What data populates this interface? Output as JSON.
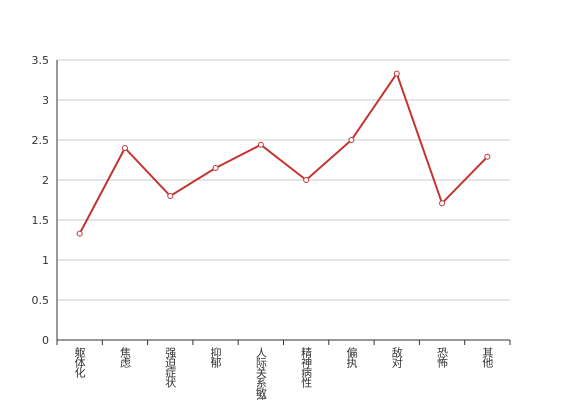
{
  "chart_data": {
    "type": "line",
    "categories": [
      "躯体化",
      "焦虑",
      "强迫症状",
      "抑郁",
      "人际关系敏感",
      "精神病性",
      "偏执",
      "敌对",
      "恐怖",
      "其他"
    ],
    "values": [
      1.33,
      2.4,
      1.8,
      2.15,
      2.44,
      2.0,
      2.5,
      3.33,
      1.71,
      2.29
    ],
    "color": "#c23531",
    "ylim": [
      0,
      3.5
    ],
    "yticks": [
      0,
      0.5,
      1,
      1.5,
      2,
      2.5,
      3,
      3.5
    ],
    "grid": true
  }
}
